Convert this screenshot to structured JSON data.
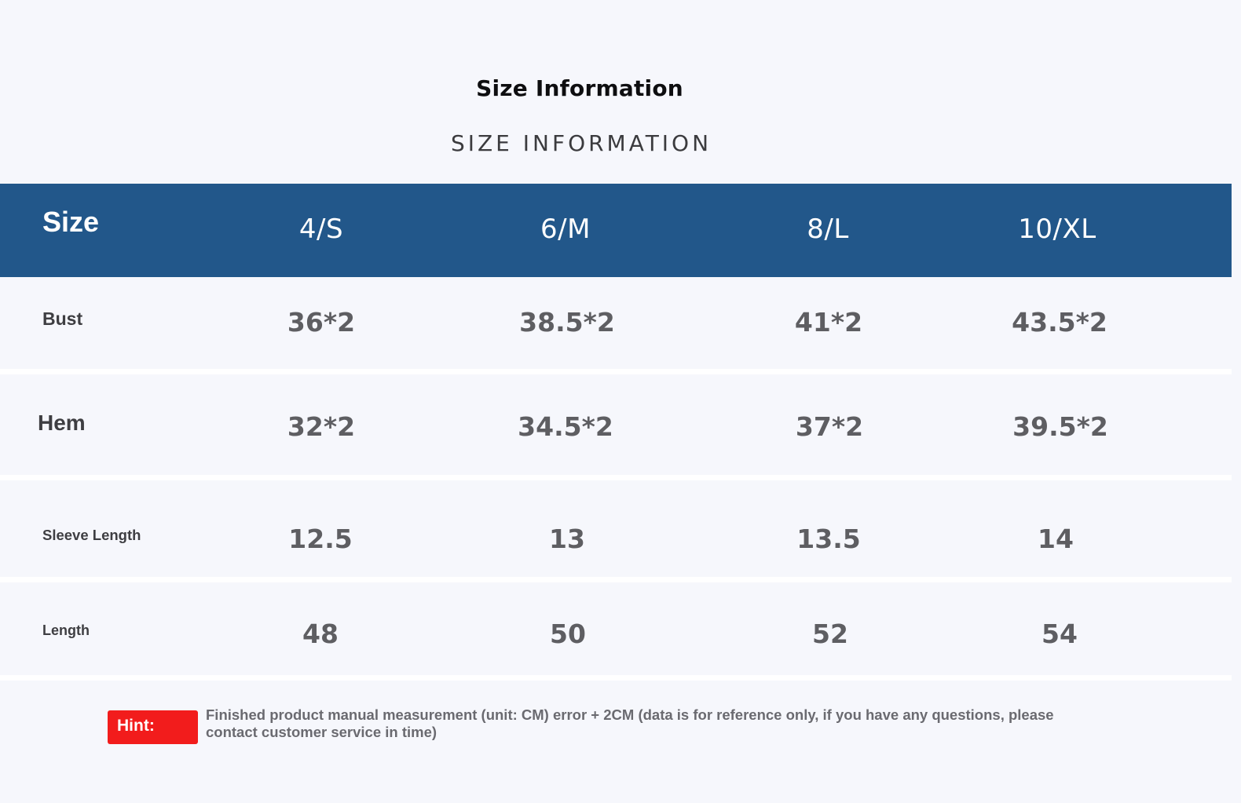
{
  "title": "Size Information",
  "subtitle": "SIZE INFORMATION",
  "table": {
    "header_label": "Size",
    "columns": [
      "4/S",
      "6/M",
      "8/L",
      "10/XL"
    ],
    "rows": [
      {
        "label": "Bust",
        "values": [
          "36*2",
          "38.5*2",
          "41*2",
          "43.5*2"
        ]
      },
      {
        "label": "Hem",
        "values": [
          "32*2",
          "34.5*2",
          "37*2",
          "39.5*2"
        ]
      },
      {
        "label": "Sleeve Length",
        "values": [
          "12.5",
          "13",
          "13.5",
          "14"
        ]
      },
      {
        "label": "Length",
        "values": [
          "48",
          "50",
          "52",
          "54"
        ]
      }
    ]
  },
  "hint": {
    "label": "Hint:",
    "text": "Finished product manual measurement (unit: CM) error + 2CM (data is for reference only, if you have any questions, please contact customer service in time)"
  },
  "colors": {
    "header_band": "#22578a",
    "hint_badge": "#f21c1c"
  }
}
